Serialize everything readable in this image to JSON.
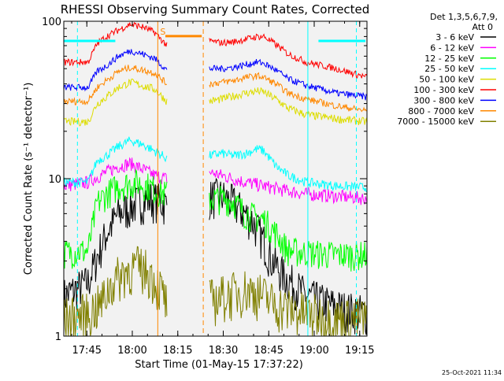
{
  "chart_data": {
    "type": "line",
    "title": "RHESSI Observing Summary Count Rates, Corrected",
    "xlabel": "Start Time (01-May-15 17:37:22)",
    "ylabel": "Corrected Count Rate (s⁻¹ detector⁻¹)",
    "yscale": "log",
    "ylim": [
      1,
      100
    ],
    "xlim_minutes": [
      0,
      100
    ],
    "x_ticks": [
      {
        "label": "17:45",
        "t": 7.6
      },
      {
        "label": "18:00",
        "t": 22.6
      },
      {
        "label": "18:15",
        "t": 37.6
      },
      {
        "label": "18:30",
        "t": 52.6
      },
      {
        "label": "18:45",
        "t": 67.6
      },
      {
        "label": "19:00",
        "t": 82.6
      },
      {
        "label": "19:15",
        "t": 97.6
      }
    ],
    "y_ticks": [
      {
        "label": "1",
        "v": 1
      },
      {
        "label": "10",
        "v": 10
      },
      {
        "label": "100",
        "v": 100
      }
    ],
    "detector_label": [
      "Det 1,3,5,6,7,9,",
      "Att 0"
    ],
    "saa_marker": "S",
    "legend_position": "right",
    "gap": [
      34,
      48
    ],
    "series": [
      {
        "name": "3 - 6 keV",
        "color": "#000000",
        "noise": 0.3,
        "points": [
          [
            0,
            1.8
          ],
          [
            8,
            2.2
          ],
          [
            11,
            3.2
          ],
          [
            14,
            4.5
          ],
          [
            18,
            6.0
          ],
          [
            24,
            7.0
          ],
          [
            28,
            7.5
          ],
          [
            32,
            7.2
          ],
          [
            34,
            6.8
          ],
          [
            48,
            7.6
          ],
          [
            52,
            7.8
          ],
          [
            56,
            7.0
          ],
          [
            62,
            5.5
          ],
          [
            66,
            4.0
          ],
          [
            68,
            3.2
          ],
          [
            72,
            2.5
          ],
          [
            80,
            1.8
          ],
          [
            92,
            1.5
          ],
          [
            100,
            1.4
          ]
        ]
      },
      {
        "name": "6 - 12 keV",
        "color": "#ff00ff",
        "noise": 0.1,
        "points": [
          [
            0,
            9.0
          ],
          [
            8,
            9.5
          ],
          [
            10,
            10.0
          ],
          [
            14,
            11.0
          ],
          [
            18,
            12.0
          ],
          [
            22,
            12.5
          ],
          [
            26,
            11.5
          ],
          [
            30,
            10.5
          ],
          [
            34,
            10.0
          ],
          [
            48,
            11.0
          ],
          [
            52,
            10.5
          ],
          [
            56,
            10.0
          ],
          [
            60,
            9.5
          ],
          [
            66,
            9.0
          ],
          [
            72,
            8.5
          ],
          [
            80,
            8.0
          ],
          [
            88,
            7.8
          ],
          [
            100,
            7.5
          ]
        ]
      },
      {
        "name": "12 - 25 keV",
        "color": "#00ff00",
        "noise": 0.22,
        "points": [
          [
            0,
            3.4
          ],
          [
            8,
            3.5
          ],
          [
            11,
            7.0
          ],
          [
            14,
            8.0
          ],
          [
            18,
            9.0
          ],
          [
            24,
            9.5
          ],
          [
            28,
            9.0
          ],
          [
            32,
            8.2
          ],
          [
            34,
            8.0
          ],
          [
            48,
            7.5
          ],
          [
            52,
            7.5
          ],
          [
            56,
            7.2
          ],
          [
            60,
            6.0
          ],
          [
            66,
            5.5
          ],
          [
            70,
            4.5
          ],
          [
            74,
            3.5
          ],
          [
            80,
            3.4
          ],
          [
            90,
            3.3
          ],
          [
            100,
            3.3
          ]
        ]
      },
      {
        "name": "25 - 50 keV",
        "color": "#00ffff",
        "noise": 0.07,
        "points": [
          [
            0,
            9.5
          ],
          [
            8,
            9.5
          ],
          [
            11,
            13.0
          ],
          [
            14,
            14.0
          ],
          [
            18,
            16.0
          ],
          [
            22,
            17.5
          ],
          [
            26,
            16.5
          ],
          [
            30,
            15.0
          ],
          [
            34,
            13.5
          ],
          [
            48,
            14.0
          ],
          [
            52,
            14.5
          ],
          [
            56,
            14.0
          ],
          [
            60,
            14.5
          ],
          [
            64,
            15.5
          ],
          [
            66,
            15.0
          ],
          [
            70,
            12.0
          ],
          [
            74,
            10.5
          ],
          [
            80,
            9.5
          ],
          [
            90,
            9.0
          ],
          [
            100,
            8.8
          ]
        ]
      },
      {
        "name": "50 - 100 keV",
        "color": "#dddd00",
        "noise": 0.06,
        "points": [
          [
            0,
            23.0
          ],
          [
            8,
            23.0
          ],
          [
            11,
            30.0
          ],
          [
            14,
            33.0
          ],
          [
            18,
            38.0
          ],
          [
            22,
            41.0
          ],
          [
            26,
            39.0
          ],
          [
            30,
            37.0
          ],
          [
            34,
            31.0
          ],
          [
            48,
            31.0
          ],
          [
            52,
            32.0
          ],
          [
            56,
            33.5
          ],
          [
            60,
            35.0
          ],
          [
            64,
            36.0
          ],
          [
            66,
            35.5
          ],
          [
            70,
            32.0
          ],
          [
            74,
            28.0
          ],
          [
            80,
            25.5
          ],
          [
            90,
            24.0
          ],
          [
            100,
            23.0
          ]
        ]
      },
      {
        "name": "100 - 300 keV",
        "color": "#ff0000",
        "noise": 0.05,
        "points": [
          [
            0,
            55.0
          ],
          [
            8,
            55.0
          ],
          [
            11,
            72.0
          ],
          [
            14,
            80.0
          ],
          [
            18,
            88.0
          ],
          [
            22,
            96.0
          ],
          [
            26,
            92.0
          ],
          [
            30,
            85.0
          ],
          [
            34,
            70.0
          ],
          [
            48,
            75.0
          ],
          [
            52,
            73.0
          ],
          [
            56,
            74.0
          ],
          [
            60,
            77.0
          ],
          [
            64,
            80.0
          ],
          [
            66,
            80.0
          ],
          [
            70,
            71.0
          ],
          [
            74,
            62.0
          ],
          [
            80,
            55.0
          ],
          [
            90,
            50.0
          ],
          [
            100,
            44.0
          ]
        ]
      },
      {
        "name": "300 - 800 keV",
        "color": "#0000ff",
        "noise": 0.05,
        "points": [
          [
            0,
            38.0
          ],
          [
            8,
            38.0
          ],
          [
            11,
            48.0
          ],
          [
            14,
            52.0
          ],
          [
            18,
            60.0
          ],
          [
            22,
            65.0
          ],
          [
            26,
            62.0
          ],
          [
            30,
            58.0
          ],
          [
            34,
            49.0
          ],
          [
            48,
            50.0
          ],
          [
            52,
            50.0
          ],
          [
            56,
            51.0
          ],
          [
            60,
            53.0
          ],
          [
            64,
            55.0
          ],
          [
            66,
            54.0
          ],
          [
            70,
            49.0
          ],
          [
            74,
            43.0
          ],
          [
            80,
            39.0
          ],
          [
            90,
            35.0
          ],
          [
            100,
            33.0
          ]
        ]
      },
      {
        "name": "800 - 7000 keV",
        "color": "#ff8800",
        "noise": 0.05,
        "points": [
          [
            0,
            31.0
          ],
          [
            8,
            31.0
          ],
          [
            11,
            38.0
          ],
          [
            14,
            42.0
          ],
          [
            18,
            48.0
          ],
          [
            22,
            51.0
          ],
          [
            26,
            49.0
          ],
          [
            30,
            47.0
          ],
          [
            34,
            40.0
          ],
          [
            48,
            40.0
          ],
          [
            52,
            41.0
          ],
          [
            56,
            42.0
          ],
          [
            60,
            44.0
          ],
          [
            64,
            45.0
          ],
          [
            66,
            44.0
          ],
          [
            70,
            40.0
          ],
          [
            74,
            35.0
          ],
          [
            80,
            32.0
          ],
          [
            90,
            29.0
          ],
          [
            100,
            27.0
          ]
        ]
      },
      {
        "name": "7000 - 15000 keV",
        "color": "#808000",
        "noise": 0.35,
        "points": [
          [
            0,
            1.3
          ],
          [
            8,
            1.4
          ],
          [
            12,
            1.6
          ],
          [
            16,
            2.2
          ],
          [
            20,
            2.6
          ],
          [
            24,
            2.8
          ],
          [
            28,
            2.6
          ],
          [
            32,
            2.0
          ],
          [
            34,
            1.6
          ],
          [
            48,
            1.7
          ],
          [
            52,
            1.8
          ],
          [
            56,
            1.9
          ],
          [
            60,
            2.0
          ],
          [
            64,
            1.9
          ],
          [
            66,
            1.8
          ],
          [
            70,
            1.6
          ],
          [
            74,
            1.5
          ],
          [
            80,
            1.4
          ],
          [
            90,
            1.3
          ],
          [
            100,
            1.3
          ]
        ]
      }
    ]
  },
  "footer": {
    "timestamp": "25-Oct-2021 11:34"
  }
}
